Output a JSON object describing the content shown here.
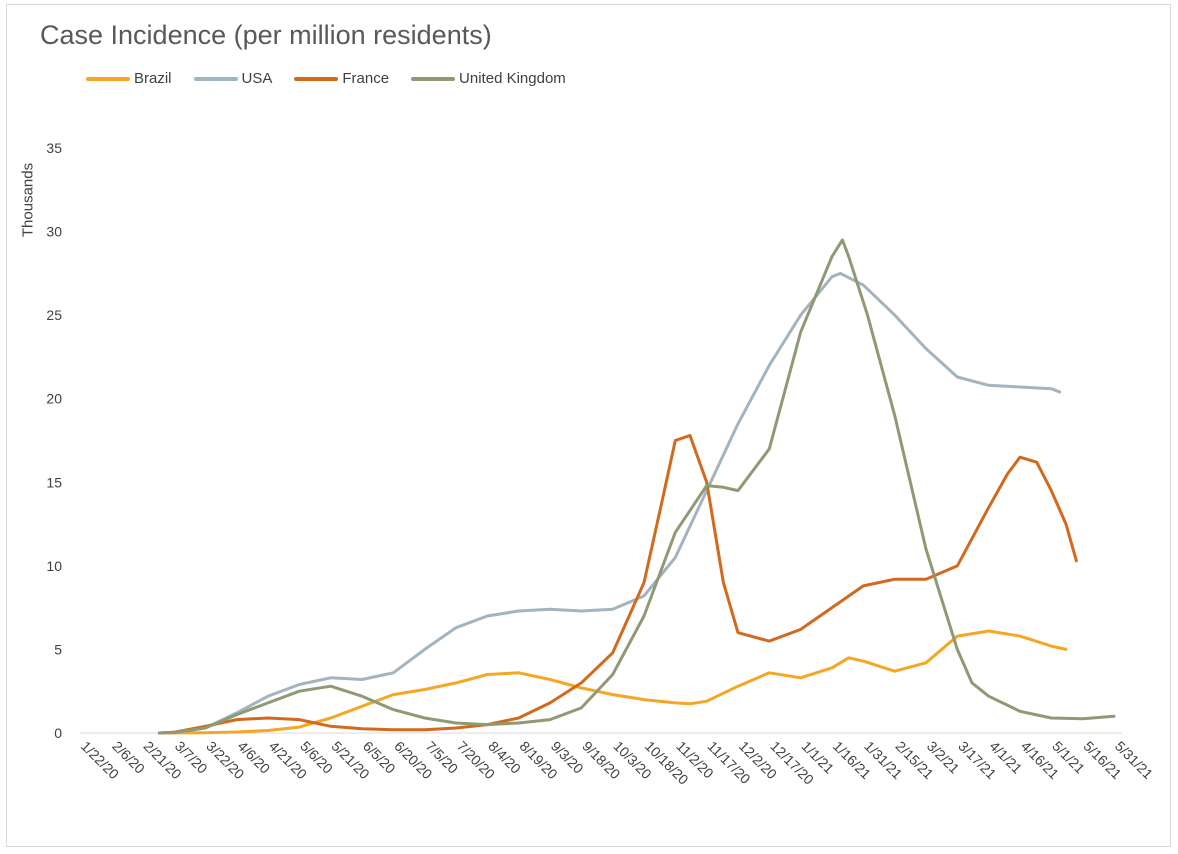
{
  "chart_data": {
    "type": "line",
    "title": "Case Incidence (per million residents)",
    "ylabel": "Thousands",
    "xlabel": "",
    "ylim": [
      0,
      35
    ],
    "yticks": [
      0,
      5,
      10,
      15,
      20,
      25,
      30,
      35
    ],
    "xlim": [
      "1/22/20",
      "5/31/21"
    ],
    "x_tick_labels": [
      "1/22/20",
      "2/6/20",
      "2/21/20",
      "3/7/20",
      "3/22/20",
      "4/6/20",
      "4/21/20",
      "5/6/20",
      "5/21/20",
      "6/5/20",
      "6/20/20",
      "7/5/20",
      "7/20/20",
      "8/4/20",
      "8/19/20",
      "9/3/20",
      "9/18/20",
      "10/3/20",
      "10/18/20",
      "11/2/20",
      "11/17/20",
      "12/2/20",
      "12/17/20",
      "1/1/21",
      "1/16/21",
      "1/31/21",
      "2/15/21",
      "3/2/21",
      "3/17/21",
      "4/1/21",
      "4/16/21",
      "5/1/21",
      "5/16/21",
      "5/31/21"
    ],
    "grid": false,
    "legend_position": "top-left",
    "series": [
      {
        "name": "Brazil",
        "color": "#F5A623",
        "x": [
          "2/29/20",
          "3/22/20",
          "4/6/20",
          "4/21/20",
          "5/6/20",
          "5/21/20",
          "6/5/20",
          "6/20/20",
          "7/5/20",
          "7/20/20",
          "8/4/20",
          "8/19/20",
          "9/3/20",
          "9/18/20",
          "10/3/20",
          "10/18/20",
          "11/2/20",
          "11/9/20",
          "11/17/20",
          "12/2/20",
          "12/17/20",
          "1/1/21",
          "1/16/21",
          "1/24/21",
          "1/31/21",
          "2/15/21",
          "3/2/21",
          "3/17/21",
          "4/1/21",
          "4/16/21",
          "5/1/21",
          "5/8/21"
        ],
        "y": [
          0,
          0.02,
          0.06,
          0.15,
          0.35,
          0.9,
          1.6,
          2.3,
          2.6,
          3.0,
          3.5,
          3.6,
          3.2,
          2.7,
          2.3,
          2.0,
          1.8,
          1.75,
          1.9,
          2.8,
          3.6,
          3.3,
          3.9,
          4.5,
          4.3,
          3.7,
          4.2,
          5.8,
          6.1,
          5.8,
          5.2,
          5.0
        ]
      },
      {
        "name": "USA",
        "color": "#A3B4BF",
        "x": [
          "2/29/20",
          "3/7/20",
          "3/22/20",
          "4/6/20",
          "4/21/20",
          "5/6/20",
          "5/21/20",
          "6/5/20",
          "6/20/20",
          "7/5/20",
          "7/20/20",
          "8/4/20",
          "8/19/20",
          "9/3/20",
          "9/18/20",
          "10/3/20",
          "10/18/20",
          "11/2/20",
          "11/17/20",
          "12/2/20",
          "12/17/20",
          "1/1/21",
          "1/16/21",
          "1/20/21",
          "1/31/21",
          "2/15/21",
          "3/2/21",
          "3/17/21",
          "4/1/21",
          "4/16/21",
          "5/1/21",
          "5/5/21"
        ],
        "y": [
          0,
          0.05,
          0.3,
          1.2,
          2.2,
          2.9,
          3.3,
          3.2,
          3.6,
          5.0,
          6.3,
          7.0,
          7.3,
          7.4,
          7.3,
          7.4,
          8.2,
          10.5,
          14.5,
          18.5,
          22.0,
          25.0,
          27.3,
          27.5,
          26.8,
          25.0,
          23.0,
          21.3,
          20.8,
          20.7,
          20.6,
          20.4
        ]
      },
      {
        "name": "France",
        "color": "#D2691E",
        "x": [
          "2/29/20",
          "3/7/20",
          "3/22/20",
          "4/6/20",
          "4/21/20",
          "5/6/20",
          "5/21/20",
          "6/5/20",
          "6/20/20",
          "7/5/20",
          "7/20/20",
          "8/4/20",
          "8/19/20",
          "9/3/20",
          "9/18/20",
          "10/3/20",
          "10/18/20",
          "10/26/20",
          "11/2/20",
          "11/9/20",
          "11/17/20",
          "11/25/20",
          "12/2/20",
          "12/17/20",
          "1/1/21",
          "1/16/21",
          "1/31/21",
          "2/15/21",
          "3/2/21",
          "3/17/21",
          "4/1/21",
          "4/10/21",
          "4/16/21",
          "4/24/21",
          "5/1/21",
          "5/8/21",
          "5/13/21"
        ],
        "y": [
          0,
          0.05,
          0.4,
          0.8,
          0.9,
          0.8,
          0.4,
          0.25,
          0.2,
          0.2,
          0.3,
          0.5,
          0.9,
          1.8,
          3.0,
          4.8,
          9.0,
          13.5,
          17.5,
          17.8,
          15.0,
          9.0,
          6.0,
          5.5,
          6.2,
          7.5,
          8.8,
          9.2,
          9.2,
          10.0,
          13.5,
          15.5,
          16.5,
          16.2,
          14.5,
          12.5,
          10.3
        ]
      },
      {
        "name": "United Kingdom",
        "color": "#8E9A74",
        "x": [
          "2/29/20",
          "3/7/20",
          "3/22/20",
          "4/6/20",
          "4/21/20",
          "5/6/20",
          "5/21/20",
          "6/5/20",
          "6/20/20",
          "7/5/20",
          "7/20/20",
          "8/4/20",
          "8/19/20",
          "9/3/20",
          "9/18/20",
          "10/3/20",
          "10/18/20",
          "11/2/20",
          "11/17/20",
          "11/25/20",
          "12/2/20",
          "12/17/20",
          "1/1/21",
          "1/16/21",
          "1/21/21",
          "1/24/21",
          "2/2/21",
          "2/15/21",
          "3/2/21",
          "3/17/21",
          "3/24/21",
          "4/1/21",
          "4/16/21",
          "5/1/21",
          "5/16/21",
          "5/31/21"
        ],
        "y": [
          0,
          0.03,
          0.3,
          1.1,
          1.8,
          2.5,
          2.8,
          2.2,
          1.4,
          0.9,
          0.6,
          0.5,
          0.6,
          0.8,
          1.5,
          3.5,
          7.0,
          12.0,
          14.8,
          14.7,
          14.5,
          17.0,
          24.0,
          28.5,
          29.5,
          28.5,
          25.0,
          19.0,
          11.0,
          5.0,
          3.0,
          2.2,
          1.3,
          0.9,
          0.85,
          1.0
        ]
      }
    ]
  }
}
